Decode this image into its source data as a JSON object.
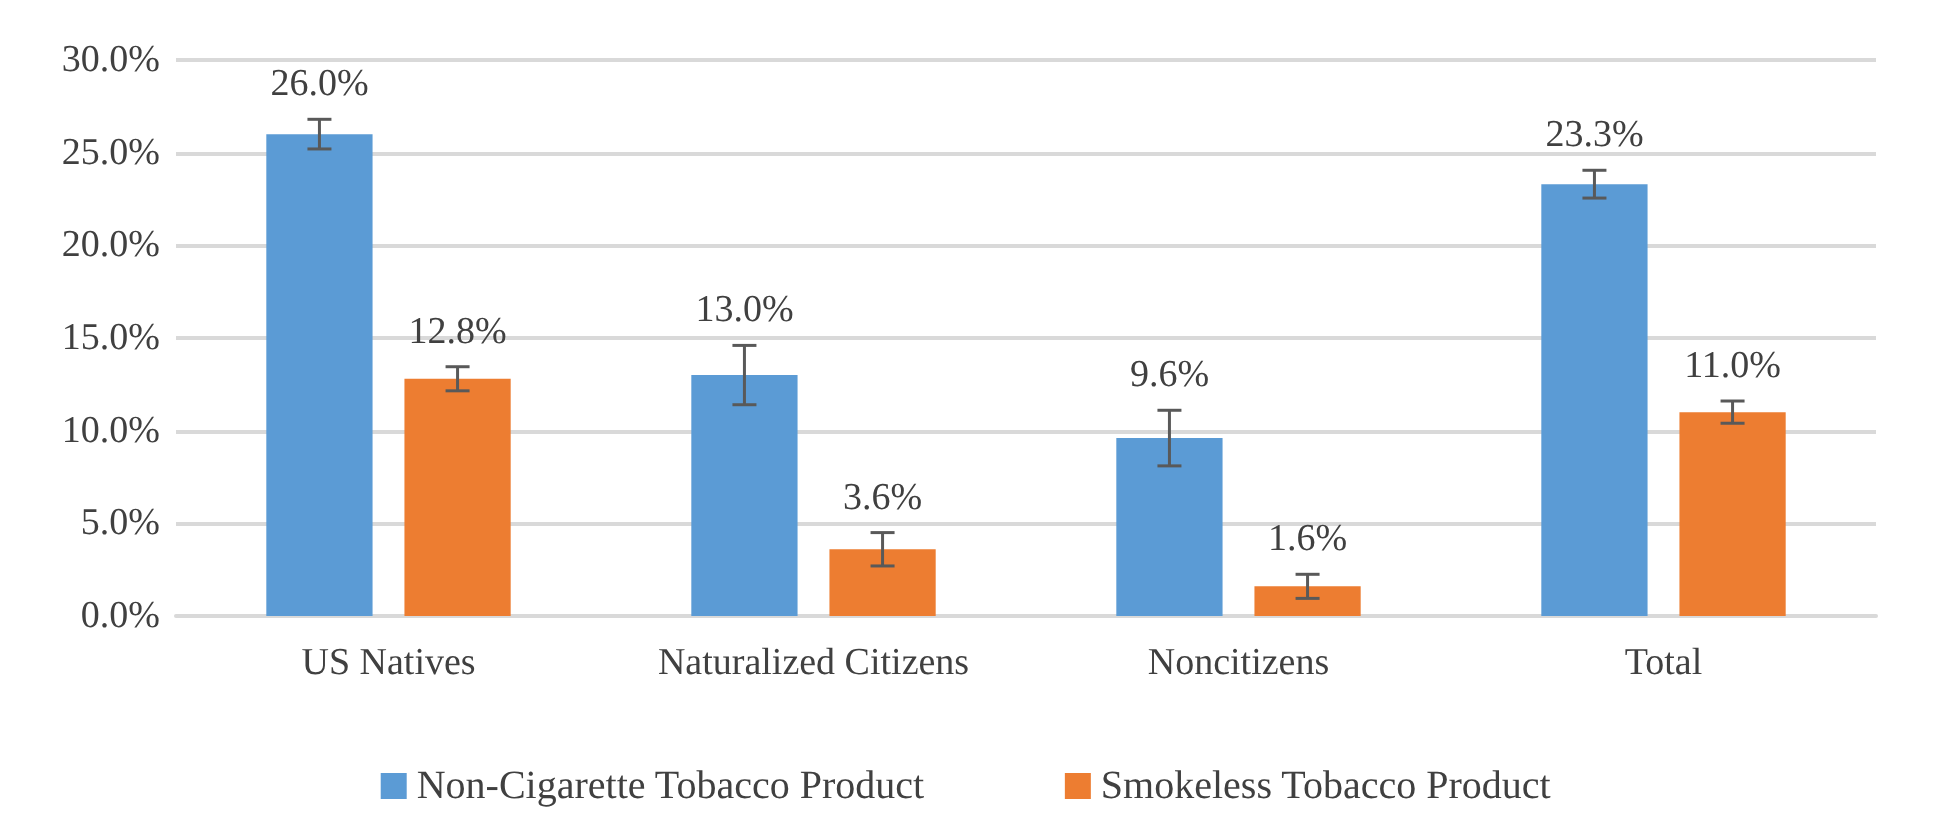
{
  "chart_data": {
    "type": "bar",
    "categories": [
      "US Natives",
      "Naturalized Citizens",
      "Noncitizens",
      "Total"
    ],
    "series": [
      {
        "name": "Non-Cigarette Tobacco Product",
        "color": "#5b9bd5",
        "values": [
          26.0,
          13.0,
          9.6,
          23.3
        ],
        "errors": [
          0.8,
          1.6,
          1.5,
          0.75
        ],
        "value_labels": [
          "26.0%",
          "13.0%",
          "9.6%",
          "23.3%"
        ]
      },
      {
        "name": "Smokeless Tobacco Product",
        "color": "#ed7d31",
        "values": [
          12.8,
          3.6,
          1.6,
          11.0
        ],
        "errors": [
          0.65,
          0.9,
          0.65,
          0.6
        ],
        "value_labels": [
          "12.8%",
          "3.6%",
          "1.6%",
          "11.0%"
        ]
      }
    ],
    "ylim": [
      0,
      30
    ],
    "yticks": [
      {
        "value": 0,
        "label": "0.0%"
      },
      {
        "value": 5,
        "label": "5.0%"
      },
      {
        "value": 10,
        "label": "10.0%"
      },
      {
        "value": 15,
        "label": "15.0%"
      },
      {
        "value": 20,
        "label": "20.0%"
      },
      {
        "value": 25,
        "label": "25.0%"
      },
      {
        "value": 30,
        "label": "30.0%"
      }
    ],
    "grid": "y",
    "legend": "bottom"
  }
}
